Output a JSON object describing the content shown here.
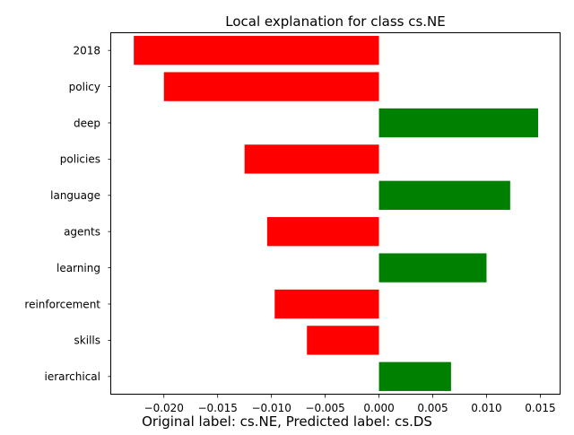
{
  "chart_data": {
    "type": "bar",
    "orientation": "horizontal",
    "title": "Local explanation for class cs.NE",
    "xlabel": "",
    "ylabel": "",
    "caption": "Original label: cs.NE, Predicted label: cs.DS",
    "categories": [
      "2018",
      "policy",
      "deep",
      "policies",
      "language",
      "agents",
      "learning",
      "reinforcement",
      "skills",
      "ierarchical"
    ],
    "values": [
      -0.0228,
      -0.02,
      0.0148,
      -0.0125,
      0.0122,
      -0.0104,
      0.01,
      -0.0097,
      -0.0067,
      0.0067
    ],
    "xlim": [
      -0.0249,
      0.0168
    ],
    "xticks": [
      -0.02,
      -0.015,
      -0.01,
      -0.005,
      0.0,
      0.005,
      0.01,
      0.015
    ],
    "xtick_labels": [
      "−0.020",
      "−0.015",
      "−0.010",
      "−0.005",
      "0.000",
      "0.005",
      "0.010",
      "0.015"
    ],
    "colors": {
      "positive": "#008000",
      "negative": "#ff0000"
    },
    "grid": false,
    "legend": "none"
  }
}
